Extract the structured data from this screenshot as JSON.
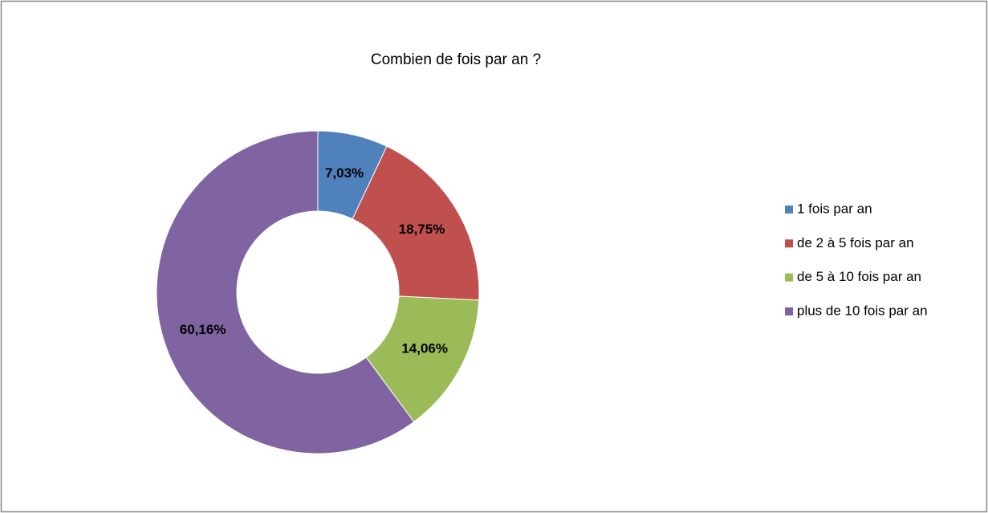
{
  "chart_data": {
    "type": "donut",
    "title": "Combien de fois par an ?",
    "categories": [
      "1 fois par an",
      "de 2 à 5 fois par an",
      "de 5 à 10 fois par an",
      "plus de 10 fois par an"
    ],
    "values": [
      7.03,
      18.75,
      14.06,
      60.16
    ],
    "value_labels": [
      "7,03%",
      "18,75%",
      "14,06%",
      "60,16%"
    ],
    "colors": [
      "#4f81bd",
      "#c0504d",
      "#9bbb59",
      "#8064a2"
    ],
    "legend": "right"
  }
}
